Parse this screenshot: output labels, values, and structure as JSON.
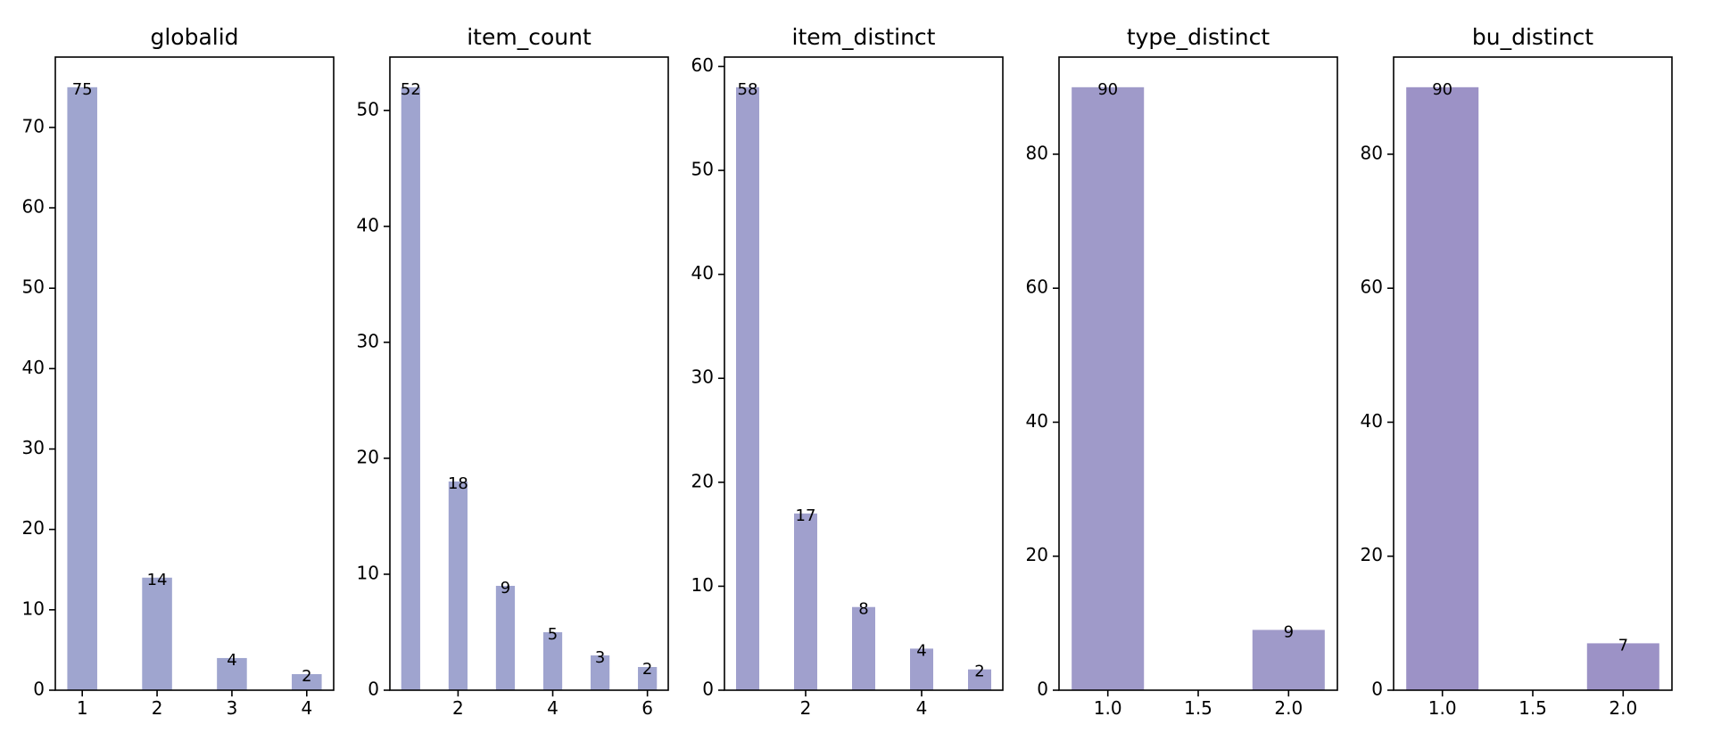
{
  "chart_data": [
    {
      "type": "bar",
      "title": "globalid",
      "x": [
        1,
        2,
        3,
        4
      ],
      "values": [
        75,
        14,
        4,
        2
      ],
      "bar_width": 0.4,
      "xlim": [
        0.64,
        4.36
      ],
      "ylim": [
        0,
        78.75
      ],
      "xticks": [
        1,
        2,
        3,
        4
      ],
      "xtick_labels": [
        "1",
        "2",
        "3",
        "4"
      ],
      "yticks": [
        0,
        10,
        20,
        30,
        40,
        50,
        60,
        70
      ],
      "ytick_labels": [
        "0",
        "10",
        "20",
        "30",
        "40",
        "50",
        "60",
        "70"
      ],
      "color": "#9fa5cf",
      "grid": false
    },
    {
      "type": "bar",
      "title": "item_count",
      "x": [
        1,
        2,
        3,
        4,
        5,
        6
      ],
      "values": [
        52,
        18,
        9,
        5,
        3,
        2
      ],
      "bar_width": 0.4,
      "xlim": [
        0.56,
        6.44
      ],
      "ylim": [
        0,
        54.6
      ],
      "xticks": [
        2,
        4,
        6
      ],
      "xtick_labels": [
        "2",
        "4",
        "6"
      ],
      "yticks": [
        0,
        10,
        20,
        30,
        40,
        50
      ],
      "ytick_labels": [
        "0",
        "10",
        "20",
        "30",
        "40",
        "50"
      ],
      "color": "#9fa4cf",
      "grid": false
    },
    {
      "type": "bar",
      "title": "item_distinct",
      "x": [
        1,
        2,
        3,
        4,
        5
      ],
      "values": [
        58,
        17,
        8,
        4,
        2
      ],
      "bar_width": 0.4,
      "xlim": [
        0.6,
        5.4
      ],
      "ylim": [
        0,
        60.9
      ],
      "xticks": [
        2,
        4
      ],
      "xtick_labels": [
        "2",
        "4"
      ],
      "yticks": [
        0,
        10,
        20,
        30,
        40,
        50,
        60
      ],
      "ytick_labels": [
        "0",
        "10",
        "20",
        "30",
        "40",
        "50",
        "60"
      ],
      "color": "#a0a0cd",
      "grid": false
    },
    {
      "type": "bar",
      "title": "type_distinct",
      "x": [
        1,
        2
      ],
      "values": [
        90,
        9
      ],
      "bar_width": 0.4,
      "xlim": [
        0.73,
        2.27
      ],
      "ylim": [
        0,
        94.5
      ],
      "xticks": [
        1,
        1.5,
        2
      ],
      "xtick_labels": [
        "1.0",
        "1.5",
        "2.0"
      ],
      "yticks": [
        0,
        20,
        40,
        60,
        80
      ],
      "ytick_labels": [
        "0",
        "20",
        "40",
        "60",
        "80"
      ],
      "color": "#9f9ac9",
      "grid": false
    },
    {
      "type": "bar",
      "title": "bu_distinct",
      "x": [
        1,
        2
      ],
      "values": [
        90,
        7
      ],
      "bar_width": 0.4,
      "xlim": [
        0.73,
        2.27
      ],
      "ylim": [
        0,
        94.5
      ],
      "xticks": [
        1,
        1.5,
        2
      ],
      "xtick_labels": [
        "1.0",
        "1.5",
        "2.0"
      ],
      "yticks": [
        0,
        20,
        40,
        60,
        80
      ],
      "ytick_labels": [
        "0",
        "20",
        "40",
        "60",
        "80"
      ],
      "color": "#9c92c6",
      "grid": false
    }
  ]
}
